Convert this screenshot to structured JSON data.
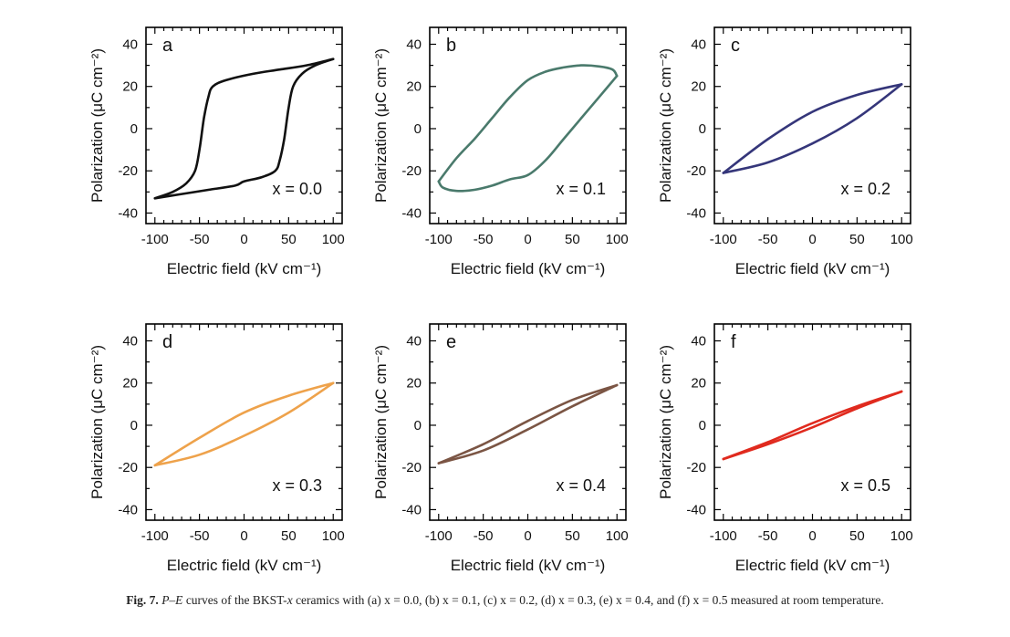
{
  "caption": {
    "label": "Fig. 7.",
    "pe": "P–E",
    "text": "curves of the BKST-",
    "xvar": "x",
    "rest": "ceramics with (a) x = 0.0, (b) x = 0.1, (c) x = 0.2, (d) x = 0.3, (e) x = 0.4, and (f) x = 0.5 measured at room temperature."
  },
  "chart_data": [
    {
      "type": "line",
      "panel": "a",
      "annotation": "x = 0.0",
      "color": "#111111",
      "xlabel": "Electric field (kV cm⁻¹)",
      "ylabel": "Polarization (μC cm⁻²)",
      "xlim": [
        -110,
        110
      ],
      "ylim": [
        -45,
        48
      ],
      "xticks": [
        "-100",
        "-50",
        "0",
        "50",
        "100"
      ],
      "yticks": [
        "-40",
        "-20",
        "0",
        "20",
        "40"
      ],
      "series": [
        {
          "x": [
            100,
            70,
            40,
            10,
            -20,
            -35,
            -40,
            -45,
            -50,
            -55,
            -65,
            -80,
            -100
          ],
          "y": [
            33,
            30,
            28,
            26,
            23,
            20,
            15,
            5,
            -10,
            -20,
            -26,
            -30,
            -33
          ]
        },
        {
          "x": [
            -100,
            -70,
            -40,
            -10,
            0,
            20,
            35,
            40,
            45,
            50,
            55,
            65,
            80,
            100
          ],
          "y": [
            -33,
            -31,
            -29,
            -27,
            -25,
            -23,
            -20,
            -15,
            -5,
            10,
            20,
            26,
            30,
            33
          ]
        }
      ]
    },
    {
      "type": "line",
      "panel": "b",
      "annotation": "x = 0.1",
      "color": "#4a7a6c",
      "xlabel": "Electric field (kV cm⁻¹)",
      "ylabel": "Polarization (μC cm⁻²)",
      "xlim": [
        -110,
        110
      ],
      "ylim": [
        -45,
        48
      ],
      "xticks": [
        "-100",
        "-50",
        "0",
        "50",
        "100"
      ],
      "yticks": [
        "-40",
        "-20",
        "0",
        "20",
        "40"
      ],
      "series": [
        {
          "x": [
            100,
            95,
            80,
            60,
            40,
            20,
            0,
            -20,
            -40,
            -60,
            -80,
            -100
          ],
          "y": [
            25,
            28,
            29.5,
            30,
            29,
            27,
            23,
            15,
            5,
            -5,
            -14,
            -25
          ]
        },
        {
          "x": [
            -100,
            -95,
            -80,
            -60,
            -40,
            -20,
            0,
            20,
            40,
            60,
            80,
            100
          ],
          "y": [
            -25,
            -28,
            -29.5,
            -29,
            -27,
            -24,
            -22,
            -15,
            -5,
            5,
            15,
            25
          ]
        }
      ]
    },
    {
      "type": "line",
      "panel": "c",
      "annotation": "x = 0.2",
      "color": "#35367a",
      "xlabel": "Electric field (kV cm⁻¹)",
      "ylabel": "Polarization (μC cm⁻²)",
      "xlim": [
        -110,
        110
      ],
      "ylim": [
        -45,
        48
      ],
      "xticks": [
        "-100",
        "-50",
        "0",
        "50",
        "100"
      ],
      "yticks": [
        "-40",
        "-20",
        "0",
        "20",
        "40"
      ],
      "series": [
        {
          "x": [
            100,
            50,
            0,
            -50,
            -100
          ],
          "y": [
            21,
            16,
            8,
            -5,
            -21
          ]
        },
        {
          "x": [
            -100,
            -50,
            0,
            50,
            100
          ],
          "y": [
            -21,
            -16,
            -7,
            5,
            21
          ]
        }
      ]
    },
    {
      "type": "line",
      "panel": "d",
      "annotation": "x = 0.3",
      "color": "#eea24b",
      "xlabel": "Electric field (kV cm⁻¹)",
      "ylabel": "Polarization (μC cm⁻²)",
      "xlim": [
        -110,
        110
      ],
      "ylim": [
        -45,
        48
      ],
      "xticks": [
        "-100",
        "-50",
        "0",
        "50",
        "100"
      ],
      "yticks": [
        "-40",
        "-20",
        "0",
        "20",
        "40"
      ],
      "series": [
        {
          "x": [
            100,
            50,
            0,
            -50,
            -100
          ],
          "y": [
            20,
            14,
            6,
            -6,
            -19
          ]
        },
        {
          "x": [
            -100,
            -50,
            0,
            50,
            100
          ],
          "y": [
            -19,
            -14,
            -5,
            6,
            20
          ]
        }
      ]
    },
    {
      "type": "line",
      "panel": "e",
      "annotation": "x = 0.4",
      "color": "#7b5544",
      "xlabel": "Electric field (kV cm⁻¹)",
      "ylabel": "Polarization (μC cm⁻²)",
      "xlim": [
        -110,
        110
      ],
      "ylim": [
        -45,
        48
      ],
      "xticks": [
        "-100",
        "-50",
        "0",
        "50",
        "100"
      ],
      "yticks": [
        "-40",
        "-20",
        "0",
        "20",
        "40"
      ],
      "series": [
        {
          "x": [
            100,
            50,
            0,
            -50,
            -100
          ],
          "y": [
            19,
            12,
            2,
            -9,
            -18
          ]
        },
        {
          "x": [
            -100,
            -50,
            0,
            50,
            100
          ],
          "y": [
            -18,
            -12,
            -2,
            9,
            19
          ]
        }
      ]
    },
    {
      "type": "line",
      "panel": "f",
      "annotation": "x = 0.5",
      "color": "#e02a1e",
      "xlabel": "Electric field (kV cm⁻¹)",
      "ylabel": "Polarization (μC cm⁻²)",
      "xlim": [
        -110,
        110
      ],
      "ylim": [
        -45,
        48
      ],
      "xticks": [
        "-100",
        "-50",
        "0",
        "50",
        "100"
      ],
      "yticks": [
        "-40",
        "-20",
        "0",
        "20",
        "40"
      ],
      "series": [
        {
          "x": [
            100,
            50,
            0,
            -50,
            -100
          ],
          "y": [
            16,
            9,
            1,
            -8,
            -16
          ]
        },
        {
          "x": [
            -100,
            -50,
            0,
            50,
            100
          ],
          "y": [
            -16,
            -9,
            -1,
            8,
            16
          ]
        }
      ]
    }
  ]
}
